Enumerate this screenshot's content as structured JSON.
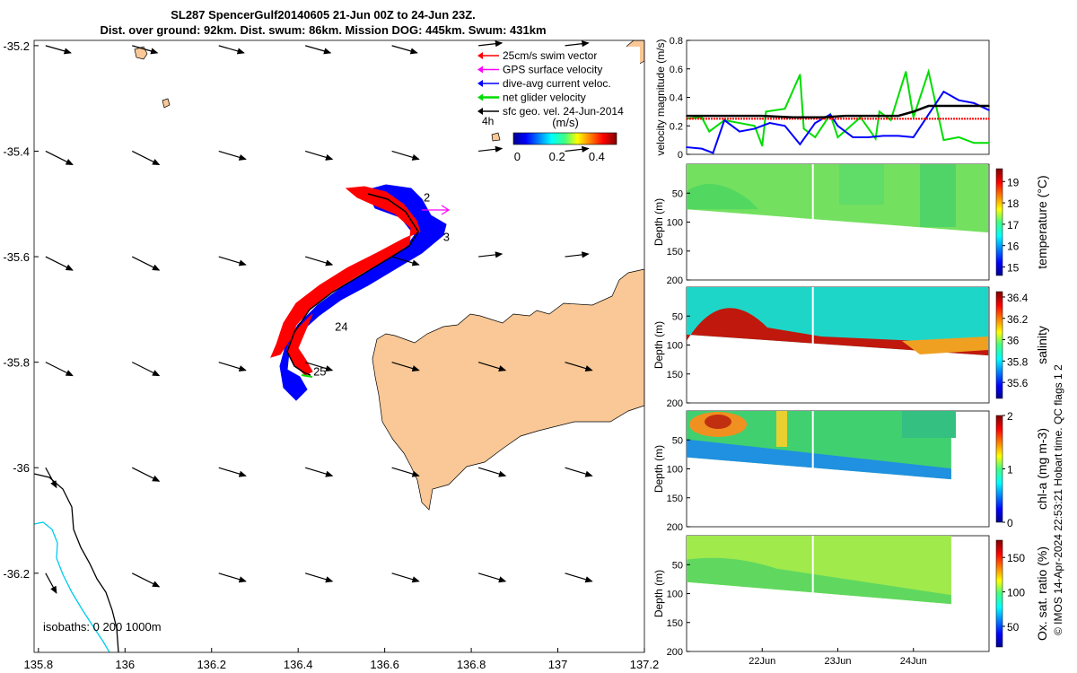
{
  "title": {
    "line1": "SL287 SpencerGulf20140605 21-Jun 00Z to 24-Jun 23Z.",
    "line2": "Dist. over ground: 92km. Dist. swum: 86km. Mission DOG: 445km. Swum: 431km"
  },
  "credit": "© IMOS 14-Apr-2024 22:53:21 Hobart time. QC flags 1  2",
  "colors": {
    "land": "#f9c896",
    "swim": "#ff0000",
    "gps": "#ff00ff",
    "dive_avg": "#0000ff",
    "net": "#00dd00",
    "isobath_0": "#000000",
    "isobath_200": "#00ccee"
  },
  "map": {
    "x_ticks": [
      135.8,
      136,
      136.2,
      136.4,
      136.6,
      136.8,
      137,
      137.2
    ],
    "y_ticks": [
      -35.2,
      -35.4,
      -35.6,
      -35.8,
      -36,
      -36.2
    ],
    "x_range": [
      135.79,
      137.2
    ],
    "y_range": [
      -35.19,
      -36.35
    ],
    "isobath_label": "isobaths: 0   200  1000m",
    "time_marker_label": "4h",
    "day_labels": [
      {
        "text": "2",
        "lon": 136.69,
        "lat": -35.495
      },
      {
        "text": "3",
        "lon": 136.735,
        "lat": -35.57
      },
      {
        "text": "24",
        "lon": 136.485,
        "lat": -35.74
      },
      {
        "text": "25",
        "lon": 136.435,
        "lat": -35.825
      }
    ],
    "legend": {
      "items": [
        {
          "label": "25cm/s swim vector",
          "color_key": "swim"
        },
        {
          "label": "GPS surface velocity",
          "color_key": "gps"
        },
        {
          "label": "dive-avg current veloc.",
          "color_key": "dive_avg"
        },
        {
          "label": "net glider velocity",
          "color_key": "net"
        },
        {
          "label": "sfc geo. vel. 24-Jun-2014",
          "color_key": "black"
        }
      ],
      "colorbar_title": "(m/s)",
      "colorbar_ticks": [
        "0",
        "0.2",
        "0.4"
      ]
    }
  },
  "chart_data": [
    {
      "type": "line",
      "title": "",
      "ylabel": "velocity magnitude (m/s)",
      "ylim": [
        0,
        0.8
      ],
      "y_ticks": [
        0,
        0.2,
        0.4,
        0.6,
        0.8
      ],
      "x_range_days": [
        21,
        25
      ],
      "series": [
        {
          "name": "net glider velocity",
          "color_key": "net",
          "x": [
            21.0,
            21.2,
            21.3,
            21.5,
            21.7,
            21.9,
            22.0,
            22.05,
            22.3,
            22.5,
            22.55,
            22.7,
            22.9,
            23.0,
            23.3,
            23.5,
            23.55,
            23.7,
            23.9,
            24.0,
            24.2,
            24.4,
            24.6,
            24.8,
            25.0
          ],
          "y": [
            0.25,
            0.26,
            0.16,
            0.24,
            0.22,
            0.2,
            0.06,
            0.3,
            0.32,
            0.56,
            0.18,
            0.12,
            0.28,
            0.12,
            0.26,
            0.11,
            0.3,
            0.24,
            0.58,
            0.26,
            0.58,
            0.1,
            0.12,
            0.08,
            0.08
          ]
        },
        {
          "name": "dive-avg current veloc.",
          "color_key": "dive_avg",
          "x": [
            21.0,
            21.2,
            21.35,
            21.5,
            21.7,
            21.9,
            22.1,
            22.3,
            22.5,
            22.7,
            22.9,
            23.0,
            23.2,
            23.4,
            23.6,
            23.8,
            24.0,
            24.2,
            24.4,
            24.6,
            24.8,
            25.0
          ],
          "y": [
            0.05,
            0.04,
            0.01,
            0.24,
            0.16,
            0.18,
            0.22,
            0.2,
            0.07,
            0.22,
            0.28,
            0.2,
            0.12,
            0.12,
            0.13,
            0.13,
            0.12,
            0.28,
            0.44,
            0.38,
            0.36,
            0.31
          ]
        },
        {
          "name": "25cm/s swim vector",
          "color_key": "swim",
          "x": [
            21.0,
            21.5,
            22.0,
            22.5,
            23.0,
            23.5,
            24.0,
            24.5,
            25.0
          ],
          "y": [
            0.25,
            0.25,
            0.25,
            0.25,
            0.25,
            0.25,
            0.25,
            0.25,
            0.25
          ]
        },
        {
          "name": "GPS surface velocity",
          "color_key": "black",
          "x": [
            21.0,
            21.3,
            21.6,
            22.0,
            22.4,
            22.8,
            23.1,
            23.5,
            23.8,
            24.0,
            24.2,
            24.4,
            24.7,
            25.0
          ],
          "y": [
            0.27,
            0.27,
            0.27,
            0.27,
            0.26,
            0.26,
            0.27,
            0.27,
            0.27,
            0.3,
            0.34,
            0.34,
            0.34,
            0.34
          ]
        }
      ]
    },
    {
      "type": "heatmap",
      "ylabel": "Depth (m)",
      "y_ticks": [
        50,
        100,
        150,
        200
      ],
      "ylim": [
        0,
        200
      ],
      "cbar_label": "temperature (°C)",
      "cbar_ticks": [
        "15",
        "16",
        "17",
        "18",
        "19"
      ],
      "data_end_day": 24.99,
      "bottom_depth_start": 78,
      "bottom_depth_end": 118
    },
    {
      "type": "heatmap",
      "ylabel": "Depth (m)",
      "y_ticks": [
        50,
        100,
        150,
        200
      ],
      "ylim": [
        0,
        200
      ],
      "cbar_label": "salinity",
      "cbar_ticks": [
        "35.6",
        "35.8",
        "36",
        "36.2",
        "36.4"
      ],
      "data_end_day": 24.99,
      "bottom_depth_start": 82,
      "bottom_depth_end": 118
    },
    {
      "type": "heatmap",
      "ylabel": "Depth (m)",
      "y_ticks": [
        50,
        100,
        150,
        200
      ],
      "ylim": [
        0,
        200
      ],
      "cbar_label": "chl-a (mg m-3)",
      "cbar_ticks": [
        "0",
        "1",
        "2"
      ],
      "data_end_day": 24.5,
      "bottom_depth_start": 80,
      "bottom_depth_end": 118
    },
    {
      "type": "heatmap",
      "ylabel": "Depth (m)",
      "y_ticks": [
        50,
        100,
        150,
        200
      ],
      "ylim": [
        0,
        200
      ],
      "cbar_label": "Ox. sat. ratio (%)",
      "cbar_ticks": [
        "50",
        "100",
        "150"
      ],
      "data_end_day": 24.5,
      "bottom_depth_start": 80,
      "bottom_depth_end": 118,
      "x_tick_labels": [
        {
          "text": "22Jun",
          "day": 22
        },
        {
          "text": "23Jun",
          "day": 23
        },
        {
          "text": "24Jun",
          "day": 24
        }
      ]
    }
  ]
}
